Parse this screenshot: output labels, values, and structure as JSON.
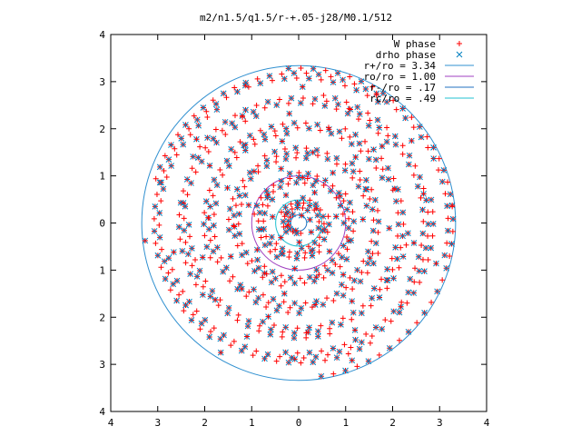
{
  "chart_data": {
    "type": "scatter",
    "title": "m2/n1.5/q1.5/r-+.05-j28/M0.1/512",
    "xlabel": "",
    "ylabel": "",
    "xlim": [
      -4,
      4
    ],
    "ylim": [
      -4,
      4
    ],
    "x_tick_values": [
      -4,
      -3,
      -2,
      -1,
      0,
      1,
      2,
      3,
      4
    ],
    "x_tick_labels": [
      "4",
      "3",
      "2",
      "1",
      "0",
      "1",
      "2",
      "3",
      "4"
    ],
    "y_tick_values": [
      4,
      3,
      2,
      1,
      0,
      -1,
      -2,
      -3,
      -4
    ],
    "y_tick_labels": [
      "4",
      "3",
      "2",
      "1",
      "0",
      "1",
      "2",
      "3",
      "4"
    ],
    "grid": false,
    "legend_position": "top-right",
    "legend": [
      {
        "label": "W phase",
        "marker": "plus",
        "color": "#ff0000"
      },
      {
        "label": "drho phase",
        "marker": "cross",
        "color": "#0080c0"
      },
      {
        "label": "r+/ro = 3.34",
        "marker": "line",
        "color": "#3090d0"
      },
      {
        "label": "ro/ro = 1.00",
        "marker": "line",
        "color": "#a040c0"
      },
      {
        "label": "r-/ro = .17",
        "marker": "line",
        "color": "#2070c0"
      },
      {
        "label": "rc/ro = .49",
        "marker": "line",
        "color": "#20c0d0"
      }
    ],
    "circles": [
      {
        "name": "r+/ro = 3.34",
        "radius": 3.34,
        "color": "#3090d0"
      },
      {
        "name": "ro/ro = 1.00",
        "radius": 1.0,
        "color": "#a040c0"
      },
      {
        "name": "r-/ro = .17",
        "radius": 0.17,
        "color": "#2070c0"
      },
      {
        "name": "rc/ro = .49",
        "radius": 0.49,
        "color": "#20c0d0"
      }
    ],
    "phase_pattern": {
      "arms": 2,
      "r_min": 0.17,
      "r_max": 3.34,
      "pitch_per_turn": 0.55,
      "rings": 30,
      "description_values_per_ring": "points sampled along two trailing spiral arms between r-/ro and r+/ro"
    },
    "colors": {
      "w_phase": "#ff0000",
      "drho_phase": "#0080c0",
      "axes": "#000000"
    }
  }
}
